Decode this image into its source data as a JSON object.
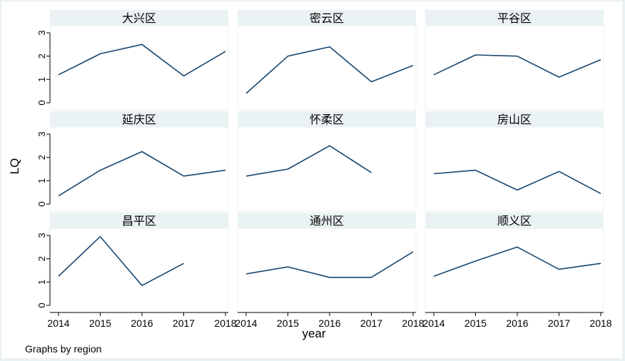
{
  "chart_data": {
    "type": "line",
    "ylabel": "LQ",
    "xlabel": "year",
    "note": "Graphs by region",
    "x": [
      2014,
      2015,
      2016,
      2017,
      2018
    ],
    "x_ticks": [
      "2014",
      "2015",
      "2016",
      "2017",
      "2018"
    ],
    "y_ticks": [
      "0",
      "1",
      "2",
      "3"
    ],
    "xlim": [
      2014,
      2018
    ],
    "ylim": [
      0,
      3
    ],
    "grid": false,
    "line_color": "#1a476f",
    "panel_header_color": "#eaf2f3",
    "panel_border_color": "#eaf2f3",
    "background_color": "#eaf2f3",
    "panels": [
      {
        "title": "大兴区",
        "values": [
          1.2,
          2.1,
          2.5,
          1.15,
          2.2
        ]
      },
      {
        "title": "密云区",
        "values": [
          0.4,
          2.0,
          2.4,
          0.9,
          1.6
        ]
      },
      {
        "title": "平谷区",
        "values": [
          1.2,
          2.05,
          2.0,
          1.1,
          1.85
        ]
      },
      {
        "title": "延庆区",
        "values": [
          0.35,
          1.45,
          2.25,
          1.2,
          1.45
        ]
      },
      {
        "title": "怀柔区",
        "values": [
          1.2,
          1.5,
          2.5,
          1.35,
          null
        ]
      },
      {
        "title": "房山区",
        "values": [
          1.3,
          1.45,
          0.6,
          1.4,
          0.45
        ]
      },
      {
        "title": "昌平区",
        "values": [
          1.25,
          2.95,
          0.85,
          1.8,
          null
        ]
      },
      {
        "title": "通州区",
        "values": [
          1.35,
          1.65,
          1.2,
          1.2,
          2.3
        ]
      },
      {
        "title": "顺义区",
        "values": [
          1.25,
          1.9,
          2.5,
          1.55,
          1.8
        ]
      }
    ]
  }
}
